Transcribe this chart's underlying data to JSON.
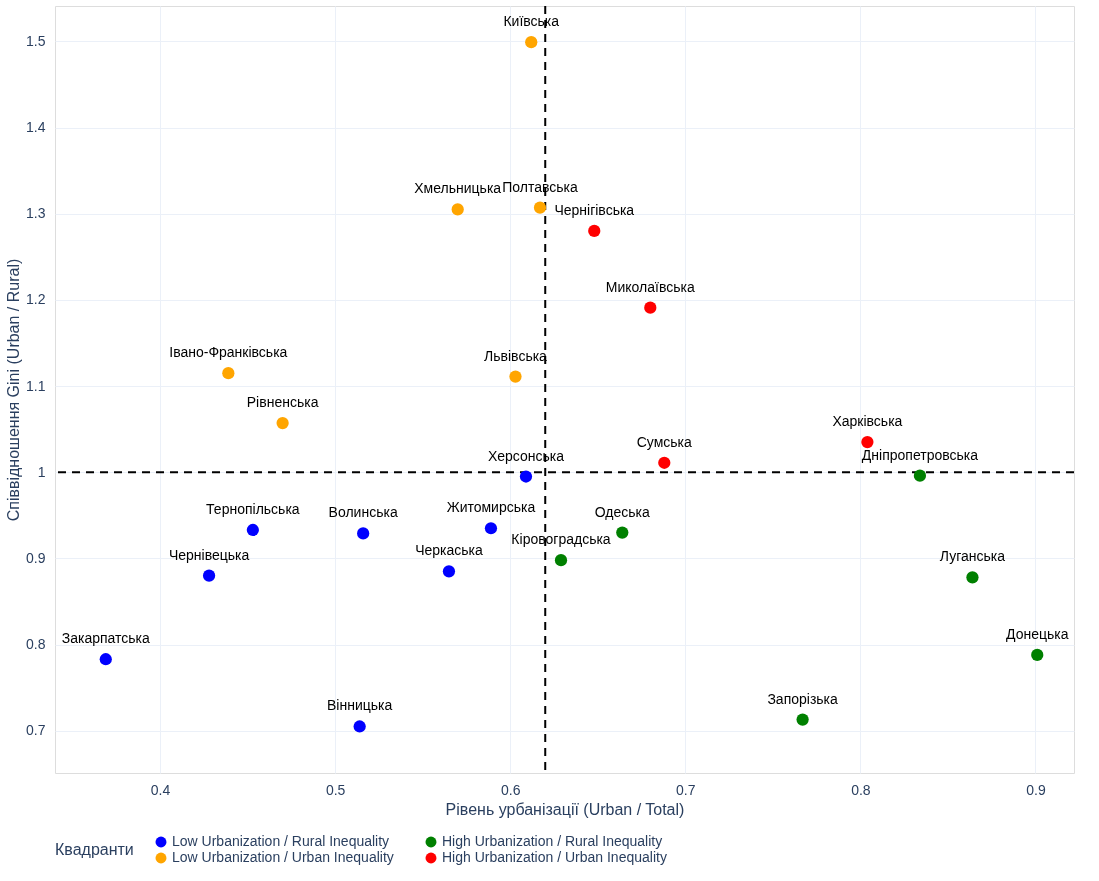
{
  "chart_data": {
    "type": "scatter",
    "xlabel": "Рівень урбанізації (Urban / Total)",
    "ylabel": "Співвідношення Gini (Urban / Rural)",
    "legend_title": "Квадранти",
    "legend": "bottom",
    "grid": true,
    "marker": "circle",
    "xlim": [
      0.34,
      0.922
    ],
    "ylim": [
      0.651,
      1.541
    ],
    "xticks": [
      0.4,
      0.5,
      0.6,
      0.7,
      0.8,
      0.9
    ],
    "yticks": [
      0.7,
      0.8,
      0.9,
      {
        "value": 1.0,
        "label": "1"
      },
      1.1,
      1.2,
      1.3,
      1.4,
      1.5
    ],
    "series": [
      {
        "name": "Low Urbanization / Rural Inequality",
        "color": "#0000ff",
        "x": [
          0.609,
          0.453,
          0.516,
          0.589,
          0.565,
          0.428,
          0.369,
          0.514
        ],
        "values": [
          0.995,
          0.933,
          0.929,
          0.935,
          0.885,
          0.88,
          0.783,
          0.705
        ]
      },
      {
        "name": "High Urbanization / Rural Inequality",
        "color": "#008000",
        "x": [
          0.834,
          0.664,
          0.629,
          0.864,
          0.901,
          0.767
        ],
        "values": [
          0.996,
          0.93,
          0.898,
          0.878,
          0.788,
          0.713
        ]
      },
      {
        "name": "Low Urbanization / Urban Inequality",
        "color": "#ffa500",
        "x": [
          0.612,
          0.57,
          0.617,
          0.439,
          0.603,
          0.47
        ],
        "values": [
          1.499,
          1.305,
          1.307,
          1.115,
          1.111,
          1.057
        ]
      },
      {
        "name": "High Urbanization / Urban Inequality",
        "color": "#ff0000",
        "x": [
          0.648,
          0.68,
          0.804,
          0.688
        ],
        "values": [
          1.28,
          1.191,
          1.035,
          1.011
        ]
      }
    ],
    "ref_lines": [
      {
        "axis": "x",
        "value": 0.62,
        "line_style": "dashed",
        "color": "#000000"
      },
      {
        "axis": "y",
        "value": 1.0,
        "line_style": "dashed",
        "color": "#000000"
      }
    ],
    "annotations": [
      {
        "text": "Херсонська",
        "x": 0.609,
        "y": 0.995
      },
      {
        "text": "Тернопільська",
        "x": 0.453,
        "y": 0.933
      },
      {
        "text": "Волинська",
        "x": 0.516,
        "y": 0.929
      },
      {
        "text": "Житомирська",
        "x": 0.589,
        "y": 0.935
      },
      {
        "text": "Черкаська",
        "x": 0.565,
        "y": 0.885
      },
      {
        "text": "Чернівецька",
        "x": 0.428,
        "y": 0.88
      },
      {
        "text": "Закарпатська",
        "x": 0.369,
        "y": 0.783
      },
      {
        "text": "Вінницька",
        "x": 0.514,
        "y": 0.705
      },
      {
        "text": "Дніпропетровська",
        "x": 0.834,
        "y": 0.996
      },
      {
        "text": "Одеська",
        "x": 0.664,
        "y": 0.93
      },
      {
        "text": "Кіровоградська",
        "x": 0.629,
        "y": 0.898
      },
      {
        "text": "Луганська",
        "x": 0.864,
        "y": 0.878
      },
      {
        "text": "Донецька",
        "x": 0.901,
        "y": 0.788
      },
      {
        "text": "Запорізька",
        "x": 0.767,
        "y": 0.713
      },
      {
        "text": "Київська",
        "x": 0.612,
        "y": 1.499
      },
      {
        "text": "Хмельницька",
        "x": 0.57,
        "y": 1.305
      },
      {
        "text": "Полтавська",
        "x": 0.617,
        "y": 1.307
      },
      {
        "text": "Івано-Франківська",
        "x": 0.439,
        "y": 1.115
      },
      {
        "text": "Львівська",
        "x": 0.603,
        "y": 1.111
      },
      {
        "text": "Рівненська",
        "x": 0.47,
        "y": 1.057
      },
      {
        "text": "Чернігівська",
        "x": 0.648,
        "y": 1.28
      },
      {
        "text": "Миколаївська",
        "x": 0.68,
        "y": 1.191
      },
      {
        "text": "Харківська",
        "x": 0.804,
        "y": 1.035
      },
      {
        "text": "Сумська",
        "x": 0.688,
        "y": 1.011
      }
    ]
  }
}
